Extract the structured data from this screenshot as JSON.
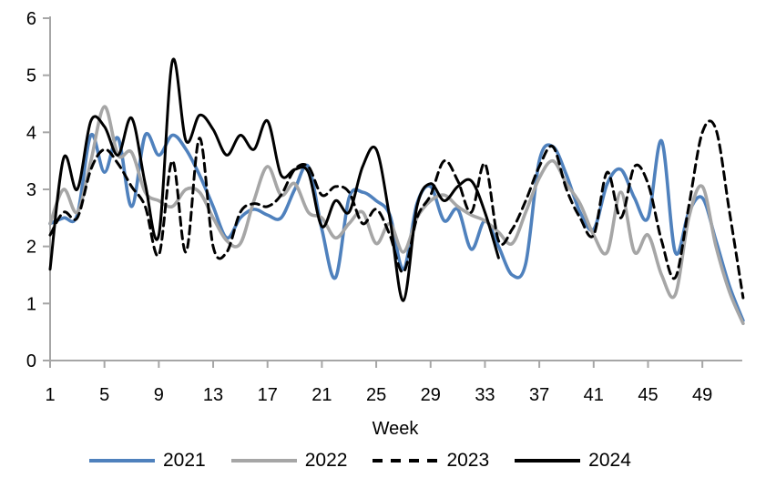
{
  "chart_data": {
    "type": "line",
    "title": "",
    "xlabel": "Week",
    "ylabel": "",
    "grid": false,
    "legend_position": "bottom",
    "x_axis": {
      "min": 1,
      "max": 52,
      "tick_values": [
        1,
        5,
        9,
        13,
        17,
        21,
        25,
        29,
        33,
        37,
        41,
        45,
        49
      ]
    },
    "y_axis": {
      "min": 0,
      "max": 6,
      "tick_values": [
        0,
        1,
        2,
        3,
        4,
        5,
        6
      ]
    },
    "axis_color": "#A6A6A6",
    "series": [
      {
        "name": "2021",
        "color": "#4F81BD",
        "line_style": "solid",
        "start_week": 1,
        "values": [
          2.4,
          2.5,
          2.55,
          3.95,
          3.3,
          3.9,
          2.7,
          3.95,
          3.6,
          3.95,
          3.7,
          3.25,
          2.7,
          2.15,
          2.5,
          2.65,
          2.55,
          2.5,
          3.0,
          3.4,
          2.3,
          1.45,
          2.85,
          2.95,
          2.8,
          2.55,
          1.6,
          2.75,
          3.05,
          2.45,
          2.65,
          1.95,
          2.45,
          2.0,
          1.5,
          1.7,
          3.5,
          3.75,
          3.25,
          2.6,
          2.3,
          3.1,
          3.35,
          2.85,
          2.5,
          3.85,
          1.9,
          2.6,
          2.85,
          2.1,
          1.3,
          0.7
        ]
      },
      {
        "name": "2022",
        "color": "#A6A6A6",
        "line_style": "solid",
        "start_week": 1,
        "values": [
          2.4,
          3.0,
          2.6,
          3.5,
          4.45,
          3.6,
          3.65,
          2.95,
          2.8,
          2.7,
          3.0,
          2.95,
          2.5,
          2.1,
          2.05,
          2.8,
          3.4,
          2.9,
          3.1,
          2.6,
          2.5,
          2.15,
          2.4,
          2.6,
          2.05,
          2.4,
          1.9,
          2.5,
          2.8,
          2.9,
          2.7,
          2.55,
          2.45,
          2.25,
          2.05,
          2.6,
          3.2,
          3.5,
          3.1,
          2.75,
          2.2,
          1.9,
          2.95,
          1.9,
          2.2,
          1.5,
          1.15,
          2.5,
          3.05,
          2.0,
          1.2,
          0.65
        ]
      },
      {
        "name": "2023",
        "color": "#000000",
        "line_style": "dashed",
        "start_week": 1,
        "values": [
          2.2,
          2.6,
          2.5,
          3.35,
          3.7,
          3.45,
          3.05,
          2.7,
          1.85,
          3.5,
          1.9,
          3.9,
          2.0,
          1.9,
          2.6,
          2.75,
          2.7,
          2.9,
          3.35,
          3.4,
          2.9,
          3.05,
          2.95,
          2.4,
          2.65,
          2.2,
          1.55,
          2.5,
          2.9,
          3.5,
          3.15,
          2.6,
          3.45,
          2.1,
          2.3,
          2.8,
          3.4,
          3.75,
          3.0,
          2.5,
          2.2,
          3.3,
          2.5,
          3.4,
          3.1,
          2.1,
          1.45,
          2.7,
          4.0,
          4.05,
          2.6,
          1.1
        ]
      },
      {
        "name": "2024",
        "color": "#000000",
        "line_style": "solid",
        "start_week": 1,
        "values": [
          1.6,
          3.55,
          3.0,
          4.2,
          4.1,
          3.6,
          4.25,
          3.1,
          2.2,
          5.25,
          3.85,
          4.3,
          4.05,
          3.6,
          3.95,
          3.7,
          4.2,
          3.25,
          3.35,
          3.3,
          2.35,
          2.8,
          2.6,
          3.4,
          3.7,
          2.5,
          1.05,
          2.7,
          3.1,
          2.8,
          3.05,
          3.15,
          2.6,
          1.8
        ]
      }
    ]
  }
}
